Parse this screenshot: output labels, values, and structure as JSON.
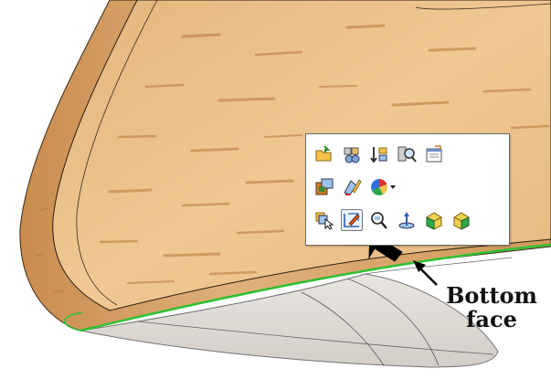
{
  "callout": {
    "line1": "Bottom",
    "line2": "face"
  },
  "toolbar": {
    "row1": [
      "open-part-icon",
      "assembly-view-icon",
      "sort-list-icon",
      "search-icon",
      "properties-icon"
    ],
    "row2": [
      "component-icon",
      "edit-sketch-icon",
      "appearance-color-icon"
    ],
    "row3": [
      "select-other-icon",
      "sketch-on-face-icon",
      "zoom-to-selection-icon",
      "normal-to-icon",
      "box-icon",
      "box-face-icon"
    ],
    "active_tool": "sketch-on-face-icon"
  },
  "colors": {
    "wood_light": "#e9bd86",
    "wood_dark": "#c98c4e",
    "edge_highlight": "#2fc234",
    "ghost_fill": "#d8d3ce"
  }
}
